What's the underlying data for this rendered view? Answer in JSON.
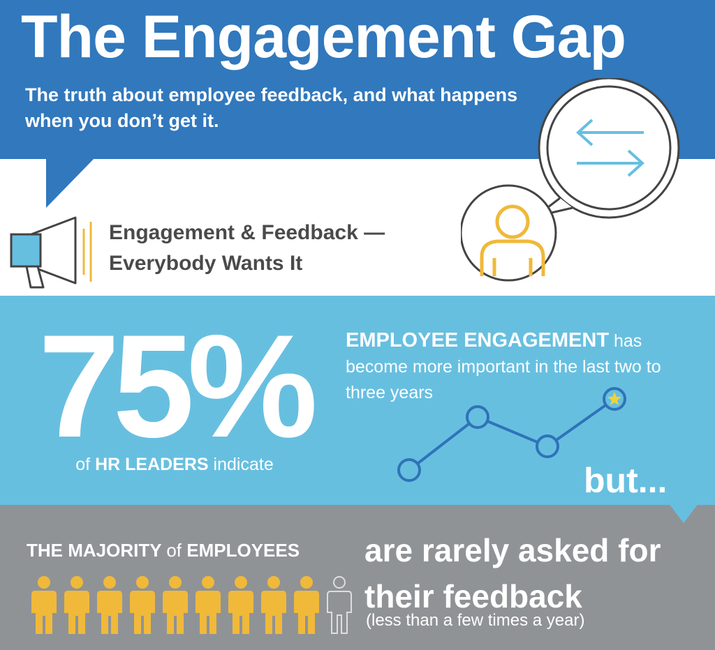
{
  "header": {
    "title": "The Engagement Gap",
    "subtitle": "The truth about employee feedback, and what happens when you don’t get it."
  },
  "section_engagement": {
    "heading_line1": "Engagement & Feedback —",
    "heading_line2": "Everybody Wants It"
  },
  "stat": {
    "value": "75%",
    "caption_prefix": "of",
    "caption_bold": "HR LEADERS",
    "caption_suffix": "indicate",
    "description_bold": "EMPLOYEE ENGAGEMENT",
    "description_rest": "has become more important in the last two to three years",
    "transition": "but..."
  },
  "majority": {
    "label_bold1": "THE MAJORITY",
    "label_thin": "of",
    "label_bold2": "EMPLOYEES",
    "headline": "are rarely asked for their feedback",
    "qualifier": "(less than a few times a year)",
    "people_highlighted": 9,
    "people_total": 10
  },
  "colors": {
    "header_blue": "#3178bd",
    "stat_blue": "#67bfe0",
    "gray": "#909396",
    "accent_yellow": "#f0b93a",
    "line_blue": "#2f73b8"
  },
  "icons": [
    "megaphone-icon",
    "speech-bubble-icon",
    "exchange-arrows-icon",
    "person-avatar-icon",
    "trend-line-icon",
    "star-icon",
    "person-icon"
  ]
}
